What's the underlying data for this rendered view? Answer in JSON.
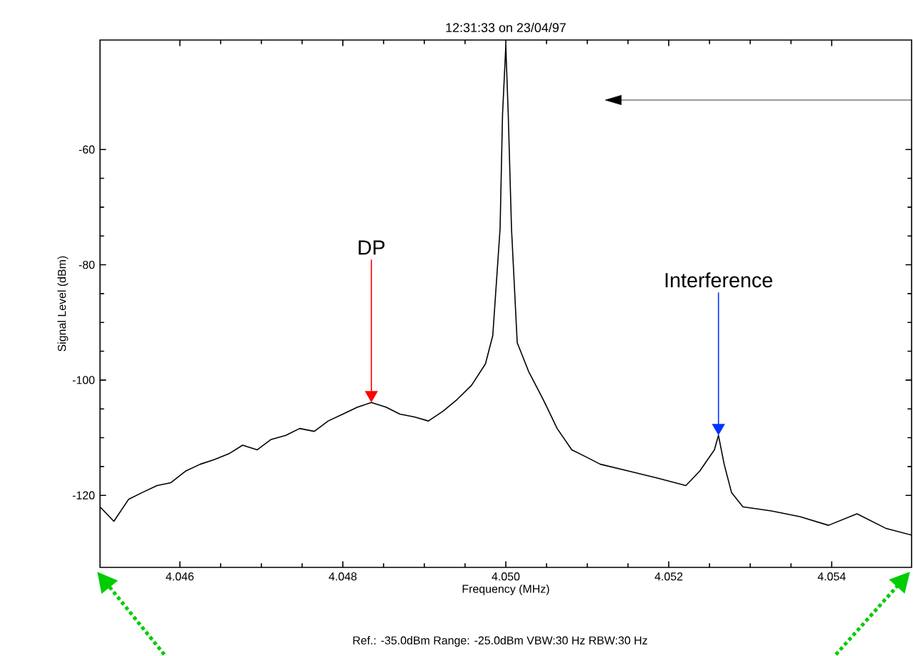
{
  "chart_data": {
    "type": "line",
    "title": "12:31:33 on 23/04/97",
    "xlabel": "Frequency (MHz)",
    "ylabel": "Signal Level (dBm)",
    "x": [
      4.04502,
      4.04519,
      4.04537,
      4.04554,
      4.04572,
      4.04589,
      4.04607,
      4.04625,
      4.04642,
      4.0466,
      4.04677,
      4.04695,
      4.04712,
      4.0473,
      4.04747,
      4.04765,
      4.04782,
      4.048,
      4.04818,
      4.04835,
      4.04853,
      4.0487,
      4.04888,
      4.04905,
      4.04923,
      4.0494,
      4.04958,
      4.04975,
      4.04984,
      4.04993,
      4.04996,
      4.05,
      4.05003,
      4.05007,
      4.05014,
      4.05028,
      4.05046,
      4.05063,
      4.05081,
      4.05098,
      4.05116,
      4.05151,
      4.05186,
      4.05221,
      4.05238,
      4.05256,
      4.05261,
      4.05268,
      4.05277,
      4.05291,
      4.05326,
      4.05361,
      4.05396,
      4.05431,
      4.05466,
      4.05498
    ],
    "series": [
      {
        "color": "#000000",
        "values": [
          -122.0,
          -124.5,
          -120.7,
          -119.5,
          -118.3,
          -117.8,
          -115.8,
          -114.6,
          -113.8,
          -112.8,
          -111.3,
          -112.1,
          -110.3,
          -109.6,
          -108.4,
          -108.9,
          -107.1,
          -105.9,
          -104.7,
          -103.9,
          -104.7,
          -105.9,
          -106.4,
          -107.1,
          -105.4,
          -103.4,
          -100.9,
          -97.2,
          -92.3,
          -73.7,
          -53.9,
          -42,
          -53.9,
          -73.7,
          -93.5,
          -98.5,
          -103.4,
          -108.4,
          -112.1,
          -113.3,
          -114.6,
          -115.8,
          -117.0,
          -118.3,
          -115.8,
          -112.1,
          -109.6,
          -114.6,
          -119.5,
          -122.0,
          -122.7,
          -123.7,
          -125.2,
          -123.2,
          -125.7,
          -126.9
        ]
      }
    ],
    "xlim": [
      4.04502,
      4.05498
    ],
    "ylim": [
      -132.5,
      -41
    ],
    "xticks": [
      {
        "value": 4.046,
        "label": "4.046"
      },
      {
        "value": 4.048,
        "label": "4.048"
      },
      {
        "value": 4.05,
        "label": "4.050"
      },
      {
        "value": 4.052,
        "label": "4.052"
      },
      {
        "value": 4.054,
        "label": "4.054"
      }
    ],
    "yticks": [
      -60,
      -80,
      -100,
      -120
    ],
    "annotations": [
      {
        "text": "DP",
        "x": 4.04835,
        "y": -103.9
      },
      {
        "text": "Interference",
        "x": 4.05261,
        "y": -109.6
      },
      "Ref.: -35.0dBm Range: -25.0dBm VBW:30 Hz RBW:30 Hz"
    ],
    "marker": "none",
    "line_style": "solid"
  }
}
